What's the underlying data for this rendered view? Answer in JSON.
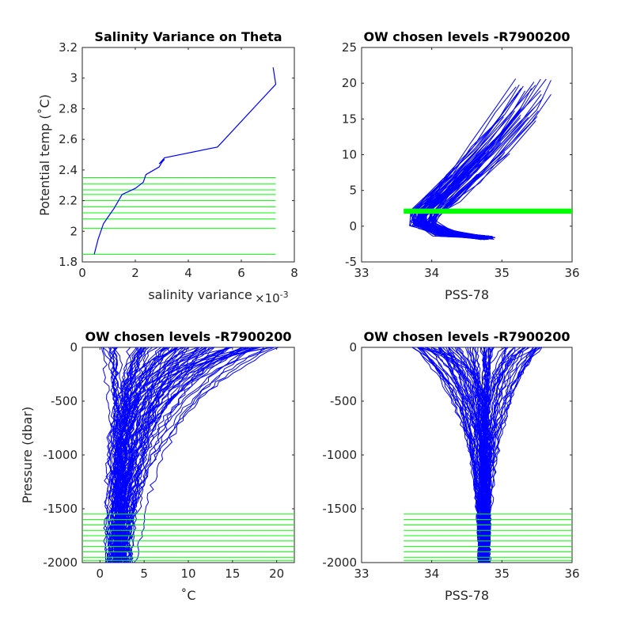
{
  "colors": {
    "series": "#0000ff",
    "levels": "#00ff00",
    "axes": "#262626"
  },
  "chart_data": [
    {
      "type": "line",
      "title": "Salinity Variance on Theta",
      "xlabel": "salinity variance",
      "x_multiplier": "×10^{-3}",
      "x_multiplier_base": "×10",
      "x_multiplier_exp": "-3",
      "ylabel": "Potential temp (˚C)",
      "xlim": [
        0,
        8
      ],
      "ylim": [
        1.8,
        3.2
      ],
      "xticks": [
        "0",
        "2",
        "4",
        "6",
        "8"
      ],
      "yticks": [
        "1.8",
        "2",
        "2.2",
        "2.4",
        "2.6",
        "2.8",
        "3",
        "3.2"
      ],
      "series": [
        {
          "x": [
            0.45,
            0.6,
            0.8,
            1.0,
            1.2,
            1.5,
            2.0,
            2.3,
            2.4,
            2.5,
            2.9,
            3.0,
            3.1,
            2.9,
            3.1,
            5.1,
            7.3,
            7.2
          ],
          "y": [
            1.85,
            1.95,
            2.05,
            2.1,
            2.15,
            2.24,
            2.28,
            2.32,
            2.37,
            2.38,
            2.42,
            2.45,
            2.47,
            2.44,
            2.48,
            2.55,
            2.96,
            3.07
          ]
        }
      ],
      "chosen_levels": {
        "x_range": [
          0,
          7.3
        ],
        "y": [
          1.85,
          2.02,
          2.08,
          2.12,
          2.16,
          2.2,
          2.24,
          2.27,
          2.31,
          2.35
        ]
      }
    },
    {
      "type": "line",
      "title": "OW chosen levels -R7900200",
      "xlabel": "PSS-78",
      "ylabel": "",
      "xlim": [
        33,
        36
      ],
      "ylim": [
        -5,
        25
      ],
      "xticks": [
        "33",
        "34",
        "35",
        "36"
      ],
      "yticks": [
        "-5",
        "0",
        "5",
        "10",
        "15",
        "20",
        "25"
      ],
      "chosen_levels": {
        "x_range": [
          33.6,
          36
        ],
        "y": [
          1.85,
          2.02,
          2.08,
          2.12,
          2.16,
          2.2,
          2.24,
          2.27,
          2.31,
          2.35
        ]
      }
    },
    {
      "type": "line",
      "title": "OW chosen levels -R7900200",
      "xlabel": "˚C",
      "ylabel": "Pressure (dbar)",
      "xlim": [
        -2,
        22
      ],
      "ylim": [
        -2000,
        0
      ],
      "xticks": [
        "0",
        "5",
        "10",
        "15",
        "20"
      ],
      "yticks": [
        "-2000",
        "-1500",
        "-1000",
        "-500",
        "0"
      ],
      "chosen_levels": {
        "x_range": [
          -2,
          22
        ],
        "y": [
          -1550,
          -1600,
          -1650,
          -1700,
          -1750,
          -1800,
          -1850,
          -1900,
          -1950,
          -1980
        ]
      }
    },
    {
      "type": "line",
      "title": "OW chosen levels -R7900200",
      "xlabel": "PSS-78",
      "ylabel": "",
      "xlim": [
        33,
        36
      ],
      "ylim": [
        -2000,
        0
      ],
      "xticks": [
        "33",
        "34",
        "35",
        "36"
      ],
      "yticks": [
        "-2000",
        "-1500",
        "-1000",
        "-500",
        "0"
      ],
      "chosen_levels": {
        "x_range": [
          33.6,
          36
        ],
        "y": [
          -1550,
          -1600,
          -1650,
          -1700,
          -1750,
          -1800,
          -1850,
          -1900,
          -1950,
          -1980
        ]
      }
    }
  ]
}
